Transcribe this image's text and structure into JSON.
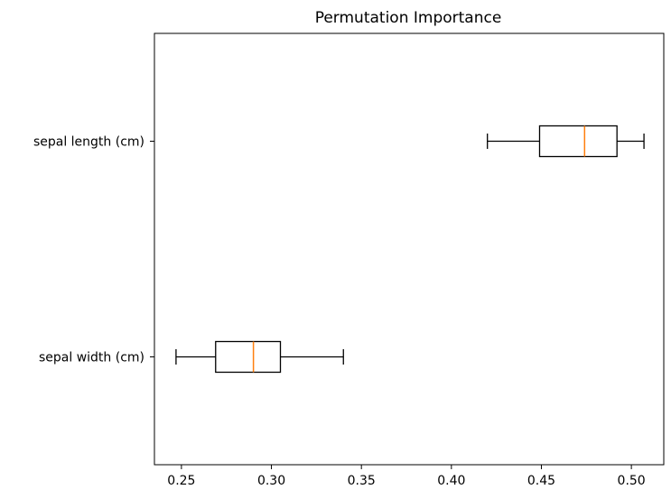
{
  "chart_data": {
    "type": "boxplot",
    "title": "Permutation Importance",
    "orientation": "horizontal",
    "xlabel": "",
    "ylabel": "",
    "xlim": [
      0.235,
      0.518
    ],
    "xticks": [
      {
        "value": 0.25,
        "label": "0.25"
      },
      {
        "value": 0.3,
        "label": "0.30"
      },
      {
        "value": 0.35,
        "label": "0.35"
      },
      {
        "value": 0.4,
        "label": "0.40"
      },
      {
        "value": 0.45,
        "label": "0.45"
      },
      {
        "value": 0.5,
        "label": "0.50"
      }
    ],
    "categories": [
      "sepal width (cm)",
      "sepal length (cm)"
    ],
    "boxes": [
      {
        "label": "sepal width (cm)",
        "whisker_low": 0.247,
        "q1": 0.269,
        "median": 0.29,
        "q3": 0.305,
        "whisker_high": 0.34
      },
      {
        "label": "sepal length (cm)",
        "whisker_low": 0.42,
        "q1": 0.449,
        "median": 0.474,
        "q3": 0.492,
        "whisker_high": 0.507
      }
    ],
    "grid": false,
    "colors": {
      "box": "#000000",
      "median": "#ff7f0e",
      "axes": "#000000"
    }
  }
}
